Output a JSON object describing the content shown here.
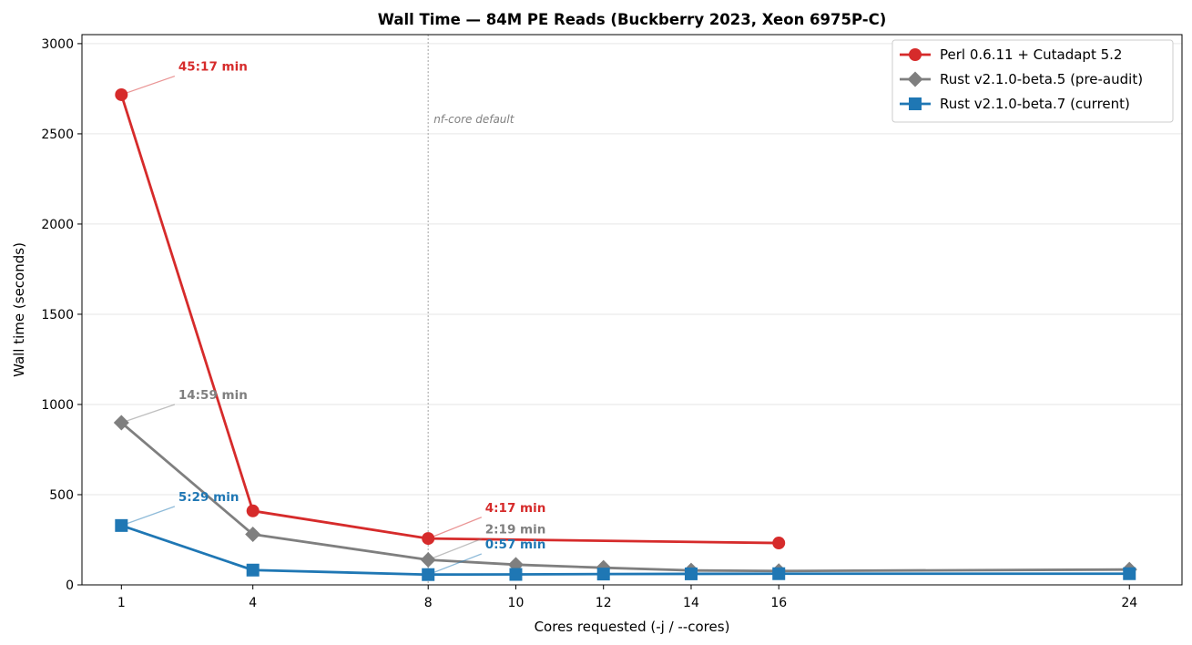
{
  "chart_data": {
    "type": "line",
    "title": "Wall Time — 84M PE Reads (Buckberry 2023, Xeon 6975P-C)",
    "xlabel": "Cores requested  (-j  /  --cores)",
    "ylabel": "Wall time (seconds)",
    "xlim": [
      0.1,
      25.2
    ],
    "ylim": [
      0,
      3050
    ],
    "xticks": [
      1,
      4,
      8,
      10,
      12,
      14,
      16,
      24
    ],
    "yticks": [
      0,
      500,
      1000,
      1500,
      2000,
      2500,
      3000
    ],
    "grid": "y",
    "legend_position": "top-right",
    "series": [
      {
        "name": "Perl 0.6.11 + Cutadapt 5.2",
        "color": "#d62b2b",
        "marker": "circle",
        "points": [
          {
            "x": 1,
            "y": 2717
          },
          {
            "x": 4,
            "y": 410
          },
          {
            "x": 8,
            "y": 257
          },
          {
            "x": 16,
            "y": 232
          }
        ]
      },
      {
        "name": "Rust v2.1.0-beta.5 (pre-audit)",
        "color": "#7f7f7f",
        "marker": "diamond",
        "points": [
          {
            "x": 1,
            "y": 899
          },
          {
            "x": 4,
            "y": 280
          },
          {
            "x": 8,
            "y": 139
          },
          {
            "x": 10,
            "y": 112
          },
          {
            "x": 12,
            "y": 95
          },
          {
            "x": 14,
            "y": 80
          },
          {
            "x": 16,
            "y": 77
          },
          {
            "x": 24,
            "y": 85
          }
        ]
      },
      {
        "name": "Rust v2.1.0-beta.7 (current)",
        "color": "#1f77b4",
        "marker": "square",
        "points": [
          {
            "x": 1,
            "y": 329
          },
          {
            "x": 4,
            "y": 82
          },
          {
            "x": 8,
            "y": 57
          },
          {
            "x": 10,
            "y": 58
          },
          {
            "x": 12,
            "y": 60
          },
          {
            "x": 14,
            "y": 61
          },
          {
            "x": 16,
            "y": 62
          },
          {
            "x": 24,
            "y": 62
          }
        ]
      }
    ],
    "annotations": [
      {
        "text": "45:17 min",
        "series": 0,
        "x": 1,
        "y": 2717,
        "label_x": 2.3,
        "label_y": 2830
      },
      {
        "text": "14:59 min",
        "series": 1,
        "x": 1,
        "y": 899,
        "label_x": 2.3,
        "label_y": 1010
      },
      {
        "text": "5:29 min",
        "series": 2,
        "x": 1,
        "y": 329,
        "label_x": 2.3,
        "label_y": 445
      },
      {
        "text": "4:17 min",
        "series": 0,
        "x": 8,
        "y": 257,
        "label_x": 9.3,
        "label_y": 385
      },
      {
        "text": "2:19 min",
        "series": 1,
        "x": 8,
        "y": 139,
        "label_x": 9.3,
        "label_y": 265
      },
      {
        "text": "0:57 min",
        "series": 2,
        "x": 8,
        "y": 57,
        "label_x": 9.3,
        "label_y": 182
      }
    ],
    "reference_line": {
      "x": 8,
      "label": "nf-core default"
    }
  }
}
